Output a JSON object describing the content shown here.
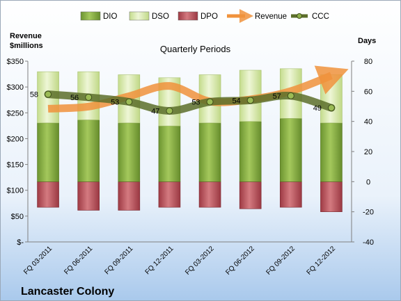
{
  "chart_data": {
    "type": "bar",
    "title": "Quarterly Periods",
    "company": "Lancaster Colony",
    "left_axis_label": "Revenue\n$millions",
    "right_axis_label": "Days",
    "categories": [
      "FQ 03-2011",
      "FQ 06-2011",
      "FQ 09-2011",
      "FQ 12-2011",
      "FQ 03-2012",
      "FQ 06-2012",
      "FQ 09-2012",
      "FQ 12-2012"
    ],
    "left_axis": {
      "min": 0,
      "max": 350,
      "step": 50,
      "tick_labels": [
        "$-",
        "$50",
        "$100",
        "$150",
        "$200",
        "$250",
        "$300",
        "$350"
      ]
    },
    "right_axis": {
      "min": -40,
      "max": 80,
      "step": 20,
      "tick_labels": [
        "-40",
        "-20",
        "0",
        "20",
        "40",
        "60",
        "80"
      ]
    },
    "legend_placement": "top",
    "series": [
      {
        "name": "DIO",
        "axis": "right",
        "kind": "stacked-bar",
        "color": "#7FA33A",
        "values": [
          39,
          41,
          39,
          37,
          39,
          40,
          42,
          39
        ]
      },
      {
        "name": "DSO",
        "axis": "right",
        "kind": "stacked-bar",
        "color": "#D6E8A8",
        "values": [
          34,
          32,
          32,
          32,
          32,
          34,
          33,
          32
        ]
      },
      {
        "name": "DPO",
        "axis": "right",
        "kind": "negative-bar",
        "color": "#B85058",
        "values": [
          -17,
          -19,
          -19,
          -17,
          -17,
          -18,
          -17,
          -20
        ]
      },
      {
        "name": "Revenue",
        "axis": "left",
        "kind": "line",
        "color": "#F0923C",
        "values": [
          258,
          262,
          282,
          302,
          272,
          276,
          292,
          322
        ]
      },
      {
        "name": "CCC",
        "axis": "right",
        "kind": "line",
        "color": "#5C6E2A",
        "values": [
          58,
          56,
          53,
          47,
          53,
          54,
          57,
          49
        ],
        "labels": [
          "58",
          "56",
          "53",
          "47",
          "53",
          "54",
          "57",
          "49"
        ]
      }
    ]
  }
}
